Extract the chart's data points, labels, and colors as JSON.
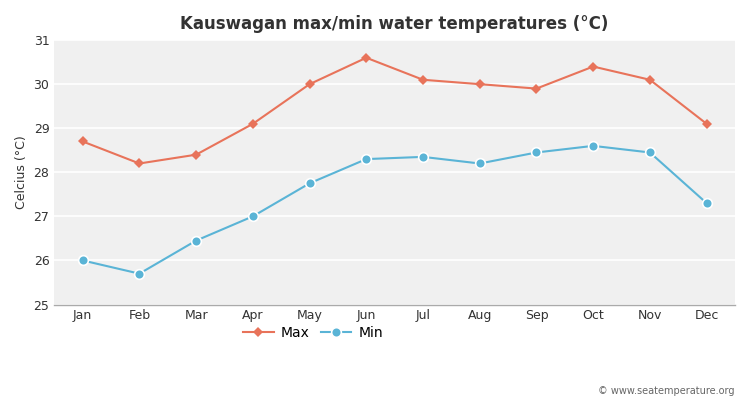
{
  "months": [
    "Jan",
    "Feb",
    "Mar",
    "Apr",
    "May",
    "Jun",
    "Jul",
    "Aug",
    "Sep",
    "Oct",
    "Nov",
    "Dec"
  ],
  "max_temps": [
    28.7,
    28.2,
    28.4,
    29.1,
    30.0,
    30.6,
    30.1,
    30.0,
    29.9,
    30.4,
    30.1,
    29.1
  ],
  "min_temps": [
    26.0,
    25.7,
    26.45,
    27.0,
    27.75,
    28.3,
    28.35,
    28.2,
    28.45,
    28.6,
    28.45,
    27.3
  ],
  "max_color": "#e8735a",
  "min_color": "#5ab4d6",
  "title": "Kauswagan max/min water temperatures (°C)",
  "ylabel": "Celcius (°C)",
  "ylim": [
    25,
    31
  ],
  "yticks": [
    25,
    26,
    27,
    28,
    29,
    30,
    31
  ],
  "fig_bg_color": "#ffffff",
  "plot_bg_color": "#f0f0f0",
  "legend_max": "Max",
  "legend_min": "Min",
  "watermark": "© www.seatemperature.org",
  "title_fontsize": 12,
  "label_fontsize": 9,
  "tick_fontsize": 9,
  "grid_color": "#ffffff",
  "bottom_spine_color": "#aaaaaa"
}
